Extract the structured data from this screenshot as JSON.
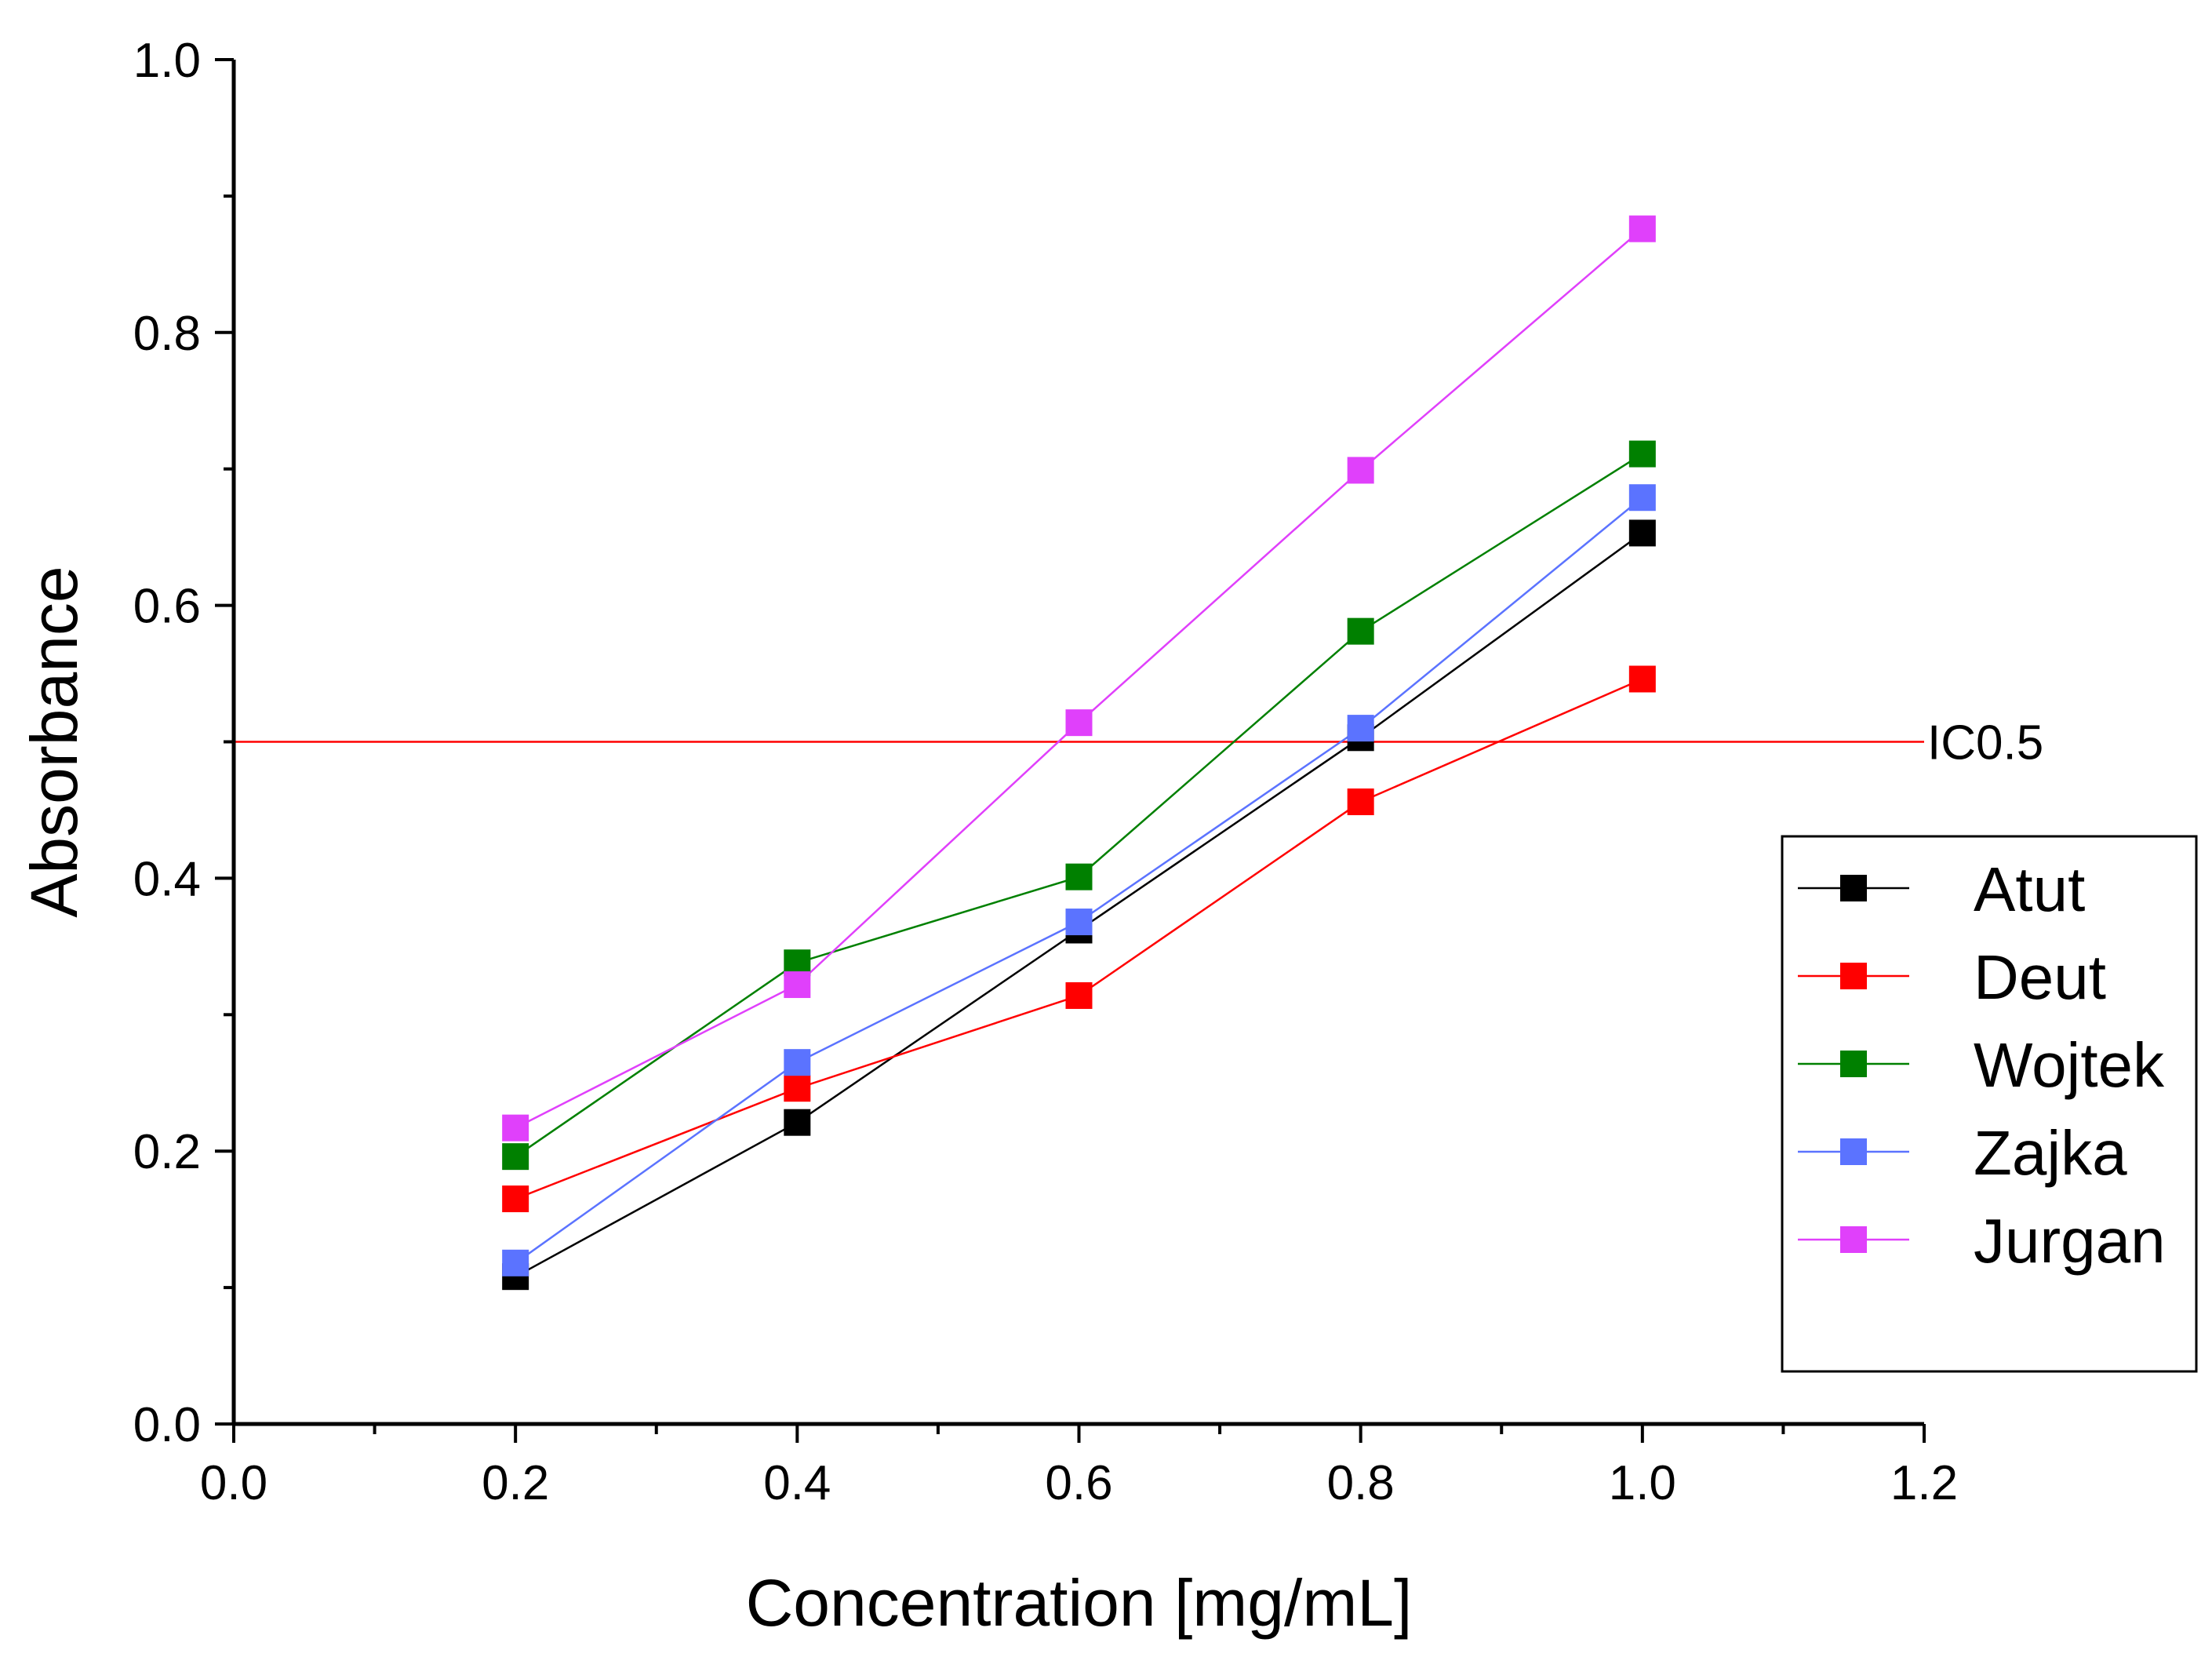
{
  "chart_data": {
    "type": "line",
    "title": "",
    "xlabel": "Concentration [mg/mL]",
    "ylabel": "Absorbance",
    "xlim": [
      0.0,
      1.2
    ],
    "ylim": [
      0.0,
      1.0
    ],
    "x_ticks": [
      "0.0",
      "0.2",
      "0.4",
      "0.6",
      "0.8",
      "1.0",
      "1.2"
    ],
    "y_ticks": [
      "0.0",
      "0.2",
      "0.4",
      "0.6",
      "0.8",
      "1.0"
    ],
    "grid": false,
    "legend_position": "right",
    "x": [
      0.2,
      0.4,
      0.6,
      0.8,
      1.0
    ],
    "series": [
      {
        "name": "Atut",
        "color": "#000000",
        "marker": "square",
        "values": [
          0.108,
          0.221,
          0.362,
          0.503,
          0.653
        ]
      },
      {
        "name": "Deut",
        "color": "#ff0000",
        "marker": "square",
        "values": [
          0.165,
          0.246,
          0.314,
          0.456,
          0.546
        ]
      },
      {
        "name": "Wojtek",
        "color": "#008000",
        "marker": "square",
        "values": [
          0.196,
          0.338,
          0.401,
          0.581,
          0.711
        ]
      },
      {
        "name": "Zajka",
        "color": "#5b73ff",
        "marker": "square",
        "values": [
          0.118,
          0.265,
          0.368,
          0.51,
          0.679
        ]
      },
      {
        "name": "Jurgan",
        "color": "#e040fb",
        "marker": "square",
        "values": [
          0.217,
          0.322,
          0.514,
          0.699,
          0.876
        ]
      }
    ],
    "reference_lines": [
      {
        "orientation": "horizontal",
        "value": 0.5,
        "label": "IC0.5",
        "color": "#ff0000"
      }
    ]
  }
}
